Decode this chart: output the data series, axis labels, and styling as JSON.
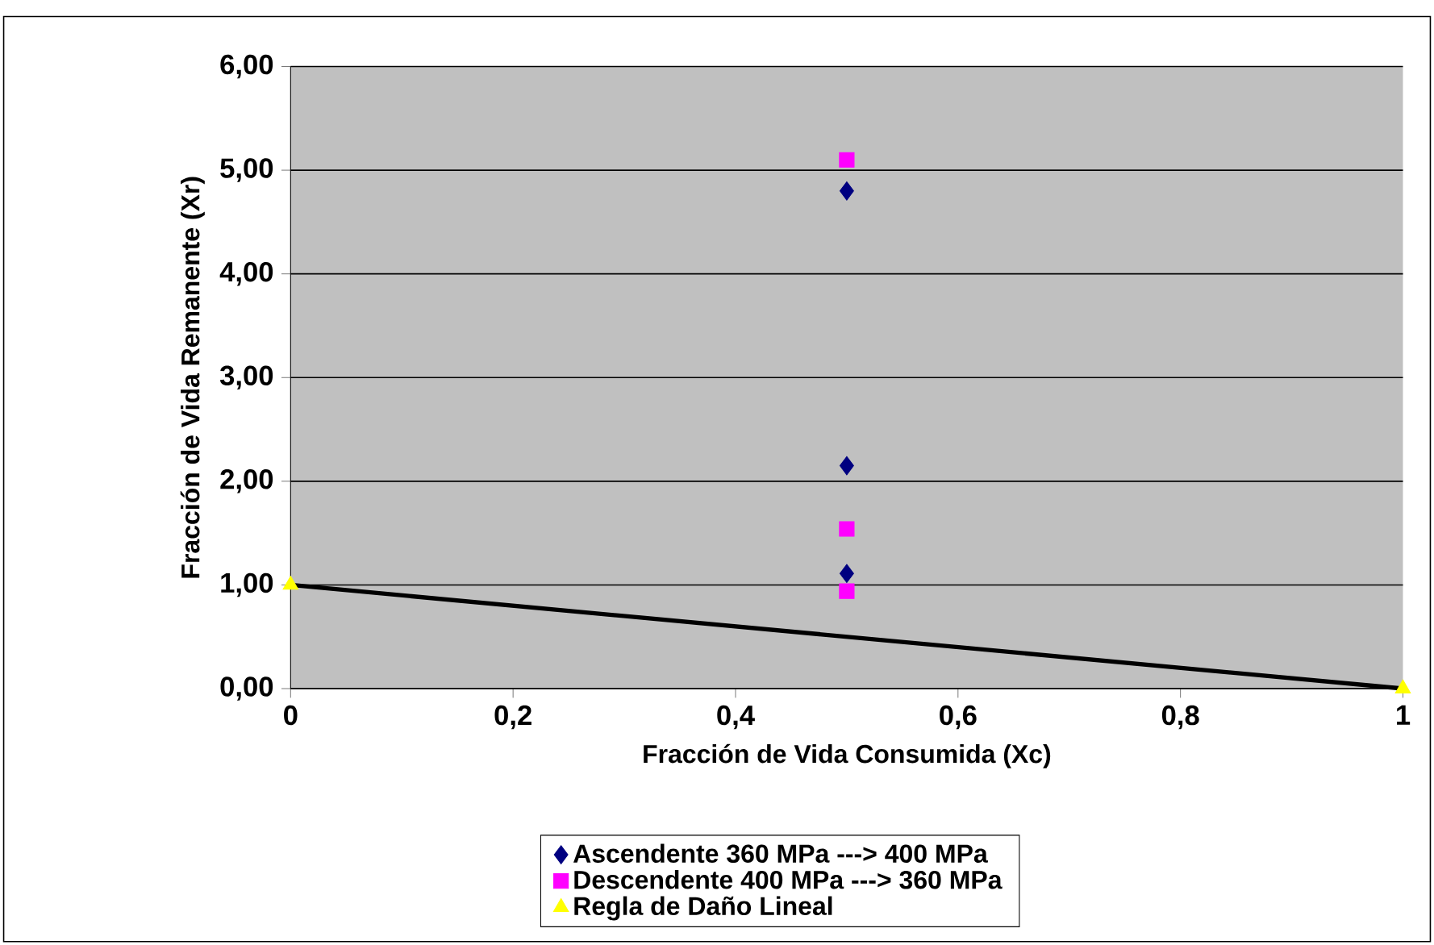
{
  "chart_data": {
    "type": "scatter",
    "xlabel": "Fracción de Vida Consumida (Xc)",
    "ylabel": "Fracción de Vida Remanente (Xr)",
    "series": [
      {
        "name": "Ascendente 360 MPa ---> 400 MPa",
        "color": "#000080",
        "marker": "diamond",
        "x": [
          0.5,
          0.5,
          0.5
        ],
        "values": [
          4.8,
          2.15,
          1.11
        ]
      },
      {
        "name": "Descendente 400 MPa ---> 360 MPa",
        "color": "#ff00ff",
        "marker": "square",
        "x": [
          0.5,
          0.5,
          0.5
        ],
        "values": [
          5.1,
          1.54,
          0.94
        ]
      },
      {
        "name": "Regla de Daño Lineal",
        "color": "#ffff00",
        "marker": "triangle",
        "x": [
          0,
          1
        ],
        "values": [
          1,
          0
        ]
      },
      {
        "type": "line",
        "color": "#000000",
        "marker": "none",
        "x": [
          0,
          1
        ],
        "values": [
          1,
          0
        ]
      }
    ],
    "xlim": [
      0,
      1
    ],
    "ylim": [
      0,
      6
    ],
    "xticks": [
      0,
      {
        "value": 0.2,
        "label": "0,2"
      },
      {
        "value": 0.4,
        "label": "0,4"
      },
      {
        "value": 0.6,
        "label": "0,6"
      },
      {
        "value": 0.8,
        "label": "0,8"
      },
      1
    ],
    "yticks": [
      {
        "value": 0,
        "label": "0,00"
      },
      {
        "value": 1,
        "label": "1,00"
      },
      {
        "value": 2,
        "label": "2,00"
      },
      {
        "value": 3,
        "label": "3,00"
      },
      {
        "value": 4,
        "label": "4,00"
      },
      {
        "value": 5,
        "label": "5,00"
      },
      {
        "value": 6,
        "label": "6,00"
      }
    ],
    "grid": "y",
    "legend": "bottom"
  }
}
